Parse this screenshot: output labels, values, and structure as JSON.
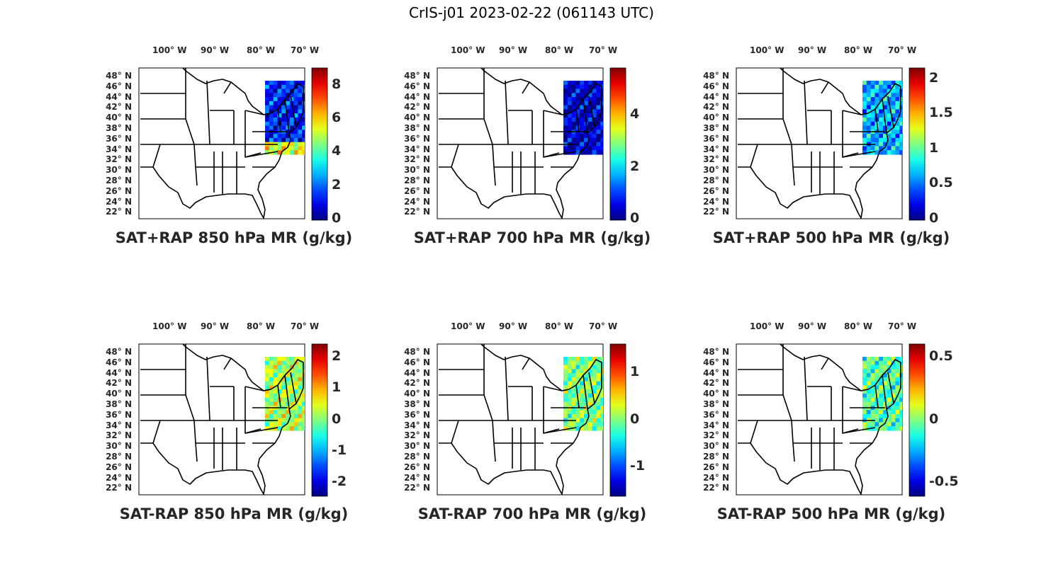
{
  "figure_title": "CrIS-j01 2023-02-22 (061143 UTC)",
  "lon_ticks": [
    "100° W",
    "90° W",
    "80° W",
    "70° W"
  ],
  "lat_ticks": [
    "48° N",
    "46° N",
    "44° N",
    "42° N",
    "40° N",
    "38° N",
    "36° N",
    "34° N",
    "32° N",
    "30° N",
    "28° N",
    "26° N",
    "24° N",
    "22° N"
  ],
  "colormap": "jet",
  "panels": [
    {
      "title": "SAT+RAP 850 hPa MR (g/kg)",
      "colorbar": {
        "min": 0,
        "max": 9,
        "ticks": [
          "0",
          "2",
          "4",
          "6",
          "8"
        ],
        "tick_values": [
          0,
          2,
          4,
          6,
          8
        ]
      },
      "swath_level": 0.15
    },
    {
      "title": "SAT+RAP 700 hPa MR (g/kg)",
      "colorbar": {
        "min": 0,
        "max": 5.8,
        "ticks": [
          "0",
          "2",
          "4"
        ],
        "tick_values": [
          0,
          2,
          4
        ]
      },
      "swath_level": 0.08
    },
    {
      "title": "SAT+RAP 500 hPa MR (g/kg)",
      "colorbar": {
        "min": 0,
        "max": 2.15,
        "ticks": [
          "0",
          "0.5",
          "1",
          "1.5",
          "2"
        ],
        "tick_values": [
          0,
          0.5,
          1,
          1.5,
          2
        ]
      },
      "swath_level": 0.3
    },
    {
      "title": "SAT-RAP 850 hPa MR (g/kg)",
      "colorbar": {
        "min": -2.4,
        "max": 2.4,
        "ticks": [
          "-2",
          "-1",
          "0",
          "1",
          "2"
        ],
        "tick_values": [
          -2,
          -1,
          0,
          1,
          2
        ]
      },
      "swath_level": 0.55
    },
    {
      "title": "SAT-RAP 700 hPa MR (g/kg)",
      "colorbar": {
        "min": -1.6,
        "max": 1.6,
        "ticks": [
          "-1",
          "0",
          "1"
        ],
        "tick_values": [
          -1,
          0,
          1
        ]
      },
      "swath_level": 0.5
    },
    {
      "title": "SAT-RAP 500 hPa MR (g/kg)",
      "colorbar": {
        "min": -0.6,
        "max": 0.6,
        "ticks": [
          "-0.5",
          "0",
          "0.5"
        ],
        "tick_values": [
          -0.5,
          0,
          0.5
        ]
      },
      "swath_level": 0.45
    }
  ]
}
